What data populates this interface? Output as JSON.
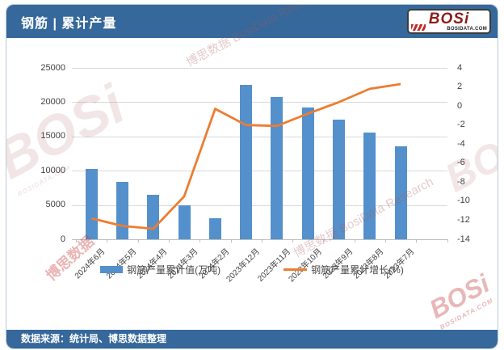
{
  "header": {
    "title": "钢筋 | 累计产量",
    "logo_text": "BOSi",
    "logo_domain": "BOSIDATA.COM"
  },
  "footer": {
    "source": "数据来源：统计局、博思数据整理"
  },
  "watermark": {
    "brand": "BOSi",
    "cn": "博思数据",
    "en": "BosiData Research",
    "combo": "博思数据 BosiData Research",
    "domain": "BOSIDATA.COM"
  },
  "chart_data": {
    "type": "bar",
    "combo": "bar+line",
    "title": "钢筋 | 累计产量",
    "categories": [
      "2024年6月",
      "2024年5月",
      "2024年4月",
      "2024年3月",
      "2024年2月",
      "2023年12月",
      "2023年11月",
      "2023年10月",
      "2023年9月",
      "2023年8月",
      "2023年7月"
    ],
    "series": [
      {
        "name": "钢筋产量累计值(万吨)",
        "type": "bar",
        "axis": "left",
        "color": "#5490CB",
        "values": [
          10300,
          8400,
          6500,
          4900,
          3100,
          22500,
          20800,
          19200,
          17500,
          15600,
          13600
        ]
      },
      {
        "name": "钢筋产量累计增长(%)",
        "type": "line",
        "axis": "right",
        "color": "#ED7D31",
        "values": [
          -11.8,
          -12.6,
          -12.9,
          -9.5,
          -0.3,
          -2.0,
          -2.1,
          -0.8,
          0.4,
          1.8,
          2.3
        ]
      }
    ],
    "left_axis": {
      "min": 0,
      "max": 25000,
      "step": 5000,
      "ticks": [
        25000,
        20000,
        15000,
        10000,
        5000,
        0
      ]
    },
    "right_axis": {
      "min": -14,
      "max": 4,
      "step": 2,
      "ticks": [
        4,
        2,
        0,
        -2,
        -4,
        -6,
        -8,
        -10,
        -12,
        -14
      ]
    },
    "grid": true,
    "legend_position": "bottom"
  }
}
